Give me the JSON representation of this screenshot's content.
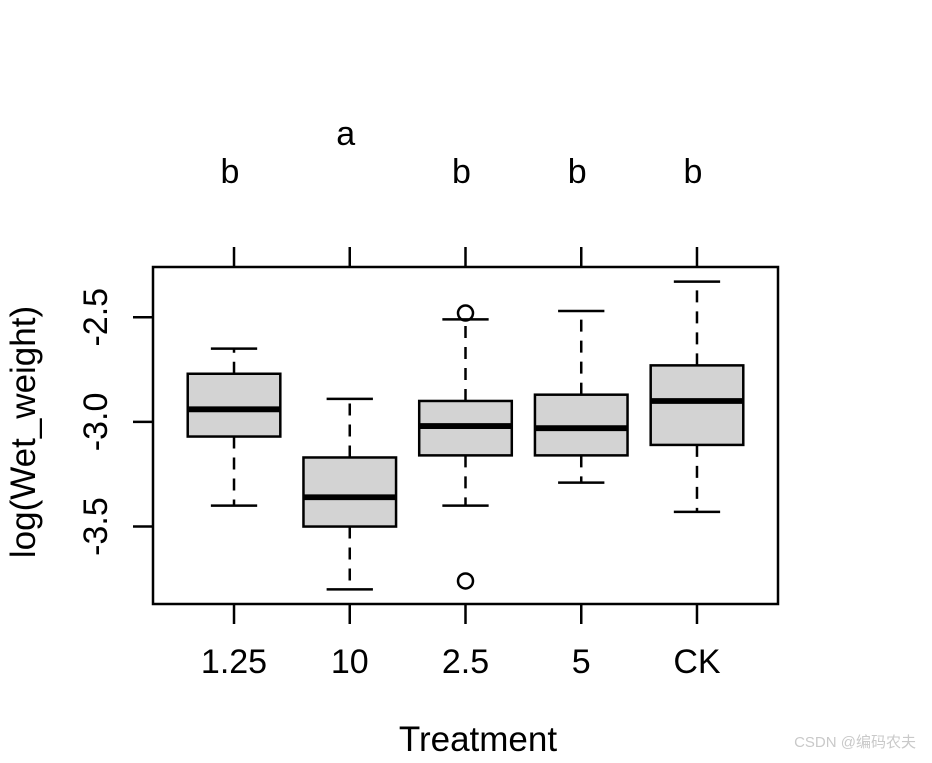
{
  "figure": {
    "background": "#ffffff"
  },
  "watermark": {
    "text": "CSDN @编码农夫",
    "color": "#c9c9c9"
  },
  "chart_data": {
    "type": "boxplot",
    "title": "",
    "xlabel": "Treatment",
    "ylabel": "log(Wet_weight)",
    "categories": [
      "1.25",
      "10",
      "2.5",
      "5",
      "CK"
    ],
    "significance_letters": [
      {
        "category": "1.25",
        "letter": "b",
        "row": "lower"
      },
      {
        "category": "10",
        "letter": "a",
        "row": "upper"
      },
      {
        "category": "2.5",
        "letter": "b",
        "row": "lower"
      },
      {
        "category": "5",
        "letter": "b",
        "row": "lower"
      },
      {
        "category": "CK",
        "letter": "b",
        "row": "lower"
      }
    ],
    "series": [
      {
        "category": "1.25",
        "whisker_low": -3.4,
        "q1": -3.07,
        "median": -2.94,
        "q3": -2.77,
        "whisker_high": -2.65,
        "outliers": []
      },
      {
        "category": "10",
        "whisker_low": -3.8,
        "q1": -3.5,
        "median": -3.36,
        "q3": -3.17,
        "whisker_high": -2.89,
        "outliers": []
      },
      {
        "category": "2.5",
        "whisker_low": -3.4,
        "q1": -3.16,
        "median": -3.02,
        "q3": -2.9,
        "whisker_high": -2.51,
        "outliers": [
          -2.48,
          -3.76
        ]
      },
      {
        "category": "5",
        "whisker_low": -3.29,
        "q1": -3.16,
        "median": -3.03,
        "q3": -2.87,
        "whisker_high": -2.47,
        "outliers": []
      },
      {
        "category": "CK",
        "whisker_low": -3.43,
        "q1": -3.11,
        "median": -2.9,
        "q3": -2.73,
        "whisker_high": -2.33,
        "outliers": []
      }
    ],
    "yticks": {
      "values": [
        -2.5,
        -3.0,
        -3.5
      ],
      "labels": [
        "-2.5",
        "-3.0",
        "-3.5"
      ]
    },
    "ylim": [
      -3.87,
      -2.26
    ],
    "xlim": [
      0.3,
      5.7
    ],
    "grid": false,
    "legend": null,
    "box_fill": "#d3d3d3",
    "line_color": "#000000"
  }
}
